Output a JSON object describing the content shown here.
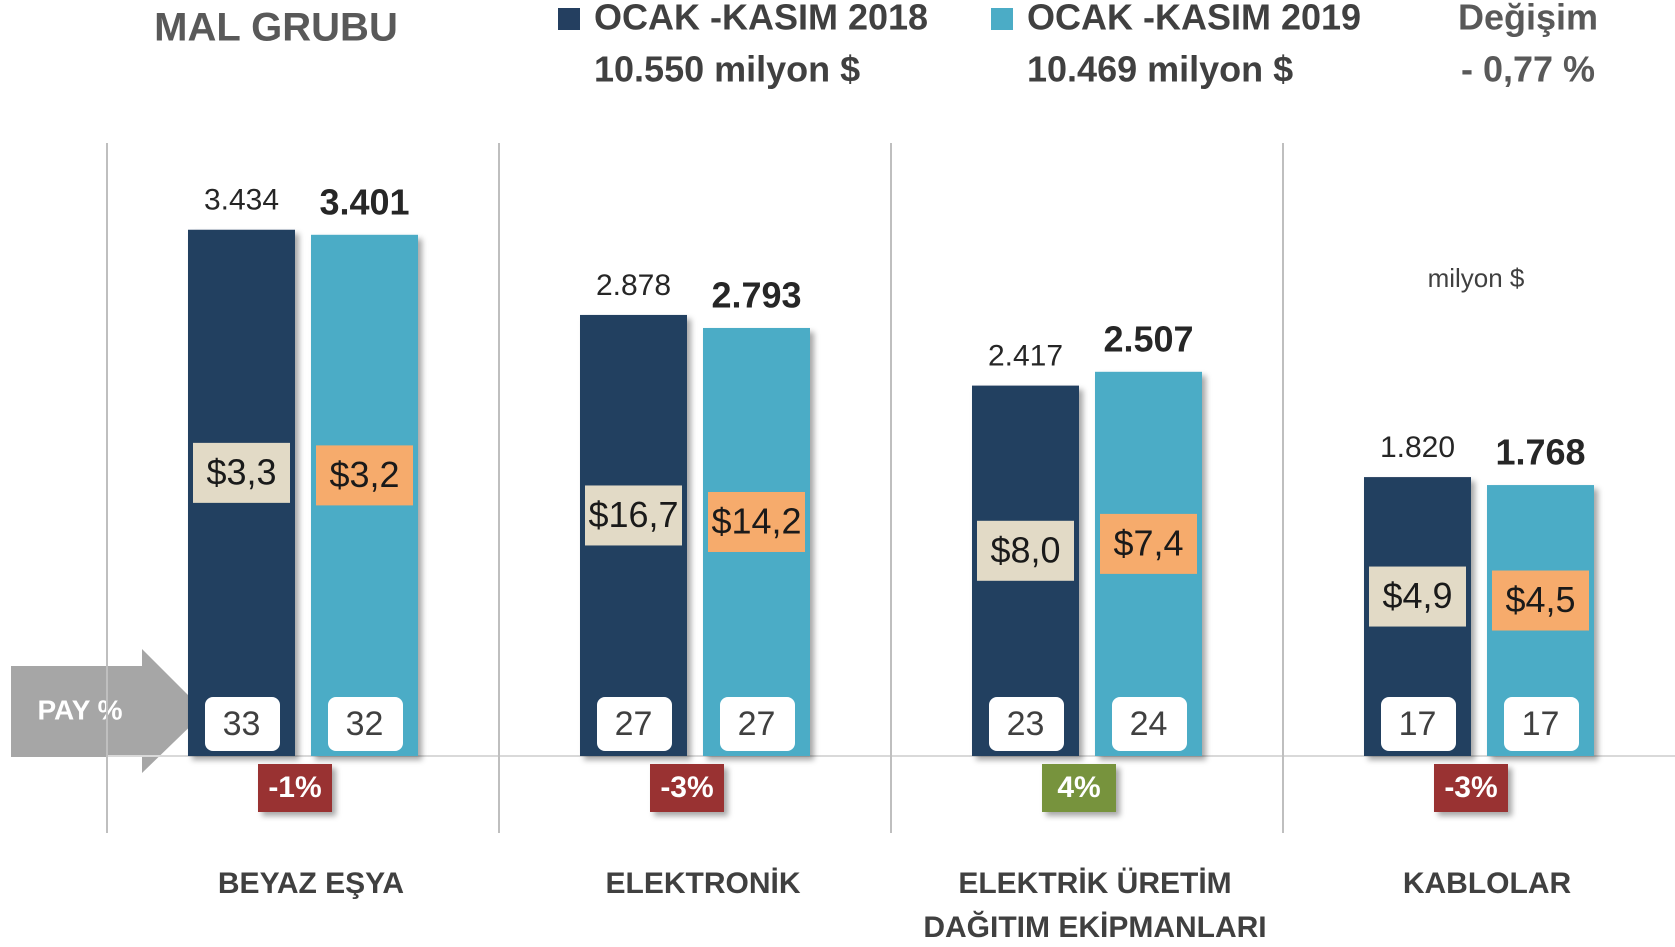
{
  "chart_data": {
    "type": "bar",
    "title": "MAL GRUBU",
    "change_header": "Değişim",
    "change_total_label": "- 0,77 %",
    "unit_label": "milyon $",
    "share_label": "PAY %",
    "categories": [
      "BEYAZ EŞYA",
      "ELEKTRONİK",
      "ELEKTRİK ÜRETİM DAĞITIM EKİPMANLARI",
      "KABLOLAR"
    ],
    "ylim": [
      0,
      4000
    ],
    "series": [
      {
        "name": "OCAK -KASIM 2018",
        "color": "#243f60",
        "total": 10550,
        "total_label": "10.550 milyon $",
        "values": [
          3434,
          2878,
          2417,
          1820
        ],
        "value_labels": [
          "3.434",
          "2.878",
          "2.417",
          "1.820"
        ],
        "price_values": [
          3.3,
          16.7,
          8.0,
          4.9
        ],
        "price_labels": [
          "$3,3",
          "$16,7",
          "$8,0",
          "$4,9"
        ],
        "price_color": "#e2dac6",
        "share_values": [
          33,
          27,
          23,
          17
        ]
      },
      {
        "name": "OCAK -KASIM 2019",
        "color": "#4bacc6",
        "total": 10469,
        "total_label": "10.469 milyon $",
        "values": [
          3401,
          2793,
          2507,
          1768
        ],
        "value_labels": [
          "3.401",
          "2.793",
          "2.507",
          "1.768"
        ],
        "price_values": [
          3.2,
          14.2,
          7.4,
          4.5
        ],
        "price_labels": [
          "$3,2",
          "$14,2",
          "$7,4",
          "$4,5"
        ],
        "price_color": "#f6ab6c",
        "share_values": [
          32,
          27,
          24,
          17
        ]
      }
    ],
    "change_values": [
      -1,
      -3,
      4,
      -3
    ],
    "change_labels": [
      "-1%",
      "-3%",
      "4%",
      "-3%"
    ],
    "change_colors": [
      "#993333",
      "#993333",
      "#77933c",
      "#993333"
    ]
  }
}
